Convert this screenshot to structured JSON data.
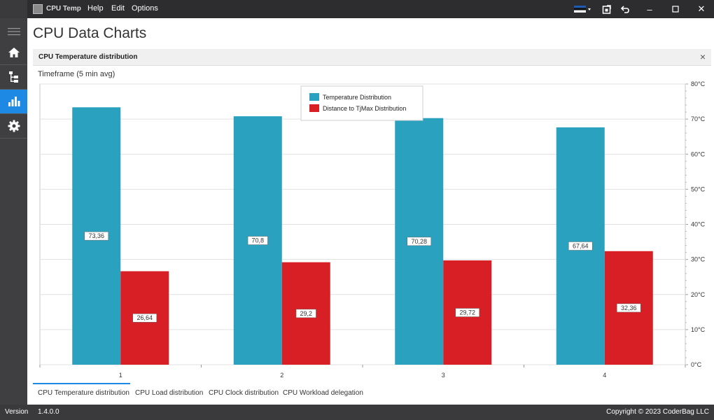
{
  "window": {
    "app_title": "CPU Temp",
    "menu": [
      "Help",
      "Edit",
      "Options"
    ]
  },
  "sidebar": {
    "items": [
      {
        "icon": "hamburger-icon"
      },
      {
        "icon": "home-icon"
      },
      {
        "icon": "tree-icon"
      },
      {
        "icon": "bar-chart-icon",
        "active": true
      },
      {
        "icon": "gear-icon"
      }
    ]
  },
  "page": {
    "title": "CPU Data Charts",
    "panel_title": "CPU Temperature distribution",
    "panel_close": "×",
    "timeframe_label": "Timeframe (5 min avg)"
  },
  "chart_data": {
    "type": "bar",
    "categories": [
      "1",
      "2",
      "3",
      "4"
    ],
    "series": [
      {
        "name": "Temperature Distribution",
        "color": "#2aa1bf",
        "values": [
          73.36,
          70.8,
          70.28,
          67.64
        ],
        "labels": [
          "73,36",
          "70,8",
          "70,28",
          "67,64"
        ]
      },
      {
        "name": "Distance to TjMax Distribution",
        "color": "#d91f26",
        "values": [
          26.64,
          29.2,
          29.72,
          32.36
        ],
        "labels": [
          "26,64",
          "29,2",
          "29,72",
          "32,36"
        ]
      }
    ],
    "ylim": [
      0,
      80
    ],
    "yticks": [
      "0°C",
      "10°C",
      "20°C",
      "30°C",
      "40°C",
      "50°C",
      "60°C",
      "70°C",
      "80°C"
    ],
    "grid": true,
    "legend_position": "top-center",
    "y_axis_side": "right"
  },
  "tabs": [
    "CPU Temperature distribution",
    "CPU Load distribution",
    "CPU Clock distribution",
    "CPU Workload delegation"
  ],
  "statusbar": {
    "version_label": "Version",
    "version_value": "1.4.0.0",
    "copyright": "Copyright © 2023 CoderBag LLC"
  },
  "colors": {
    "accent": "#1e88e5",
    "titlebar": "#2d2d30",
    "sidebar": "#3f3f42"
  }
}
